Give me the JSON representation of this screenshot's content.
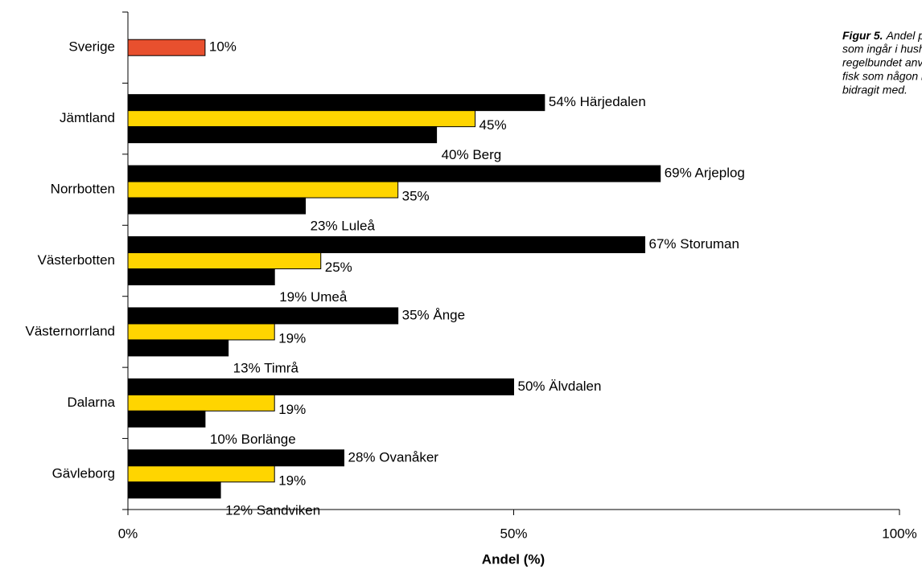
{
  "chart_data": {
    "type": "bar",
    "orientation": "horizontal",
    "x_label": "Andel (%)",
    "annotation": {
      "lead": "Figur 5.",
      "lines": [
        "Andel personer",
        "som ingår i hushåll som",
        "regelbundet använder",
        "fisk som någon i hushållet",
        "bidragit med."
      ]
    },
    "categories": [
      "Sverige",
      "Jämtland",
      "Norrbotten",
      "Västerbotten",
      "Västernorrland",
      "Dalarna",
      "Gävleborg"
    ],
    "series": [
      {
        "color": "#000000",
        "values": [
          null,
          54,
          69,
          67,
          35,
          50,
          28
        ],
        "value_labels": [
          null,
          "54% Härjedalen",
          "69% Arjeplog",
          "67% Storuman",
          "35% Ånge",
          "50% Älvdalen",
          "28% Ovanåker"
        ]
      },
      {
        "color": "#ffd500",
        "colors": [
          "#e8502e",
          "#ffd500",
          "#ffd500",
          "#ffd500",
          "#ffd500",
          "#ffd500",
          "#ffd500"
        ],
        "values": [
          10,
          45,
          35,
          25,
          19,
          19,
          19
        ],
        "value_labels": [
          "10%",
          "45%",
          "35%",
          "25%",
          "19%",
          "19%",
          "19%"
        ]
      },
      {
        "color": "#000000",
        "values": [
          null,
          40,
          23,
          19,
          13,
          10,
          12
        ],
        "value_labels": [
          null,
          "40% Berg",
          "23% Luleå",
          "19% Umeå",
          "13% Timrå",
          "10% Borlänge",
          "12% Sandviken"
        ]
      }
    ],
    "xlim": [
      0,
      100
    ],
    "xticks": [
      {
        "value": 0,
        "label": "0%"
      },
      {
        "value": 50,
        "label": "50%"
      },
      {
        "value": 100,
        "label": "100%"
      }
    ]
  }
}
